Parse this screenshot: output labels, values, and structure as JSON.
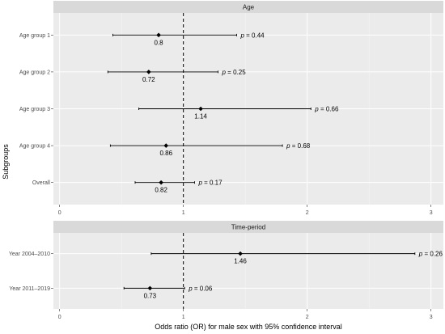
{
  "chart_data": {
    "type": "forest",
    "xlabel": "Odds ratio (OR) for male sex with 95% confidence interval",
    "ylabel": "Subgroups",
    "xlim": [
      -0.05,
      3.1
    ],
    "x_ticks": [
      0,
      1,
      2,
      3
    ],
    "x_tick_labels": [
      "0",
      "1",
      "2",
      "3"
    ],
    "reference_line": 1,
    "reference_line_style": "dashed",
    "grid": true,
    "panels": [
      {
        "title": "Age",
        "rows": [
          {
            "label": "Age group 1",
            "or": 0.8,
            "or_label": "0.8",
            "lower": 0.43,
            "upper": 1.43,
            "p_label": "p = 0.44"
          },
          {
            "label": "Age group 2",
            "or": 0.72,
            "or_label": "0.72",
            "lower": 0.39,
            "upper": 1.28,
            "p_label": "p = 0.25"
          },
          {
            "label": "Age group 3",
            "or": 1.14,
            "or_label": "1.14",
            "lower": 0.64,
            "upper": 2.03,
            "p_label": "p = 0.66"
          },
          {
            "label": "Age group 4",
            "or": 0.86,
            "or_label": "0.86",
            "lower": 0.41,
            "upper": 1.8,
            "p_label": "p = 0.68"
          },
          {
            "label": "Overall",
            "or": 0.82,
            "or_label": "0.82",
            "lower": 0.61,
            "upper": 1.09,
            "p_label": "p = 0.17"
          }
        ]
      },
      {
        "title": "Time-period",
        "rows": [
          {
            "label": "Year 2004–2010",
            "or": 1.46,
            "or_label": "1.46",
            "lower": 0.74,
            "upper": 2.87,
            "p_label": "p = 0.26"
          },
          {
            "label": "Year 2011–2019",
            "or": 0.73,
            "or_label": "0.73",
            "lower": 0.52,
            "upper": 1.01,
            "p_label": "p = 0.06"
          }
        ]
      }
    ]
  },
  "colors": {
    "panel_background": "#ebebeb",
    "strip_background": "#d9d9d9",
    "grid_major": "#ffffff",
    "marks": "#000000"
  }
}
